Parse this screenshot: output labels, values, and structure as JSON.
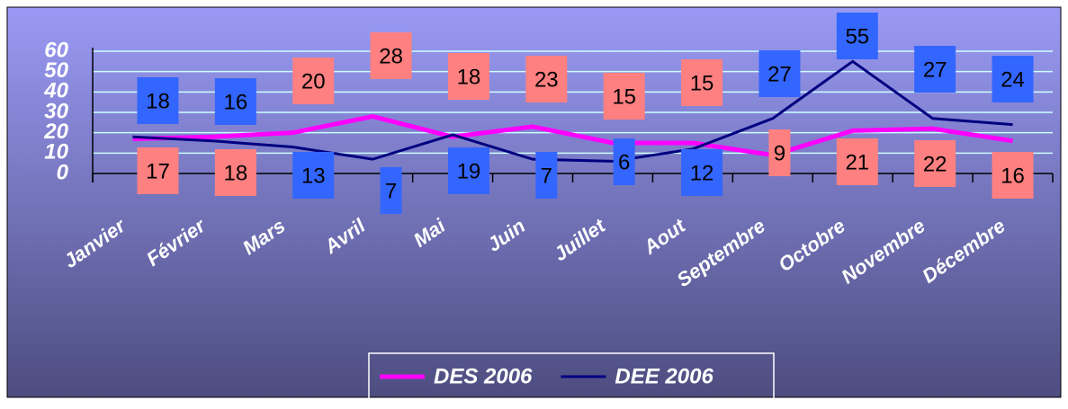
{
  "chart_data": {
    "type": "line",
    "categories": [
      "Janvier",
      "Février",
      "Mars",
      "Avril",
      "Mai",
      "Juin",
      "Juillet",
      "Aout",
      "Septembre",
      "Octobre",
      "Novembre",
      "Décembre"
    ],
    "series": [
      {
        "name": "DES 2006",
        "color": "#ff00ff",
        "label_color": "#ff8080",
        "values": [
          17,
          18,
          20,
          28,
          18,
          23,
          15,
          15,
          9,
          21,
          22,
          16
        ]
      },
      {
        "name": "DEE 2006",
        "color": "#000080",
        "label_color": "#3366ff",
        "values": [
          18,
          16,
          13,
          7,
          19,
          7,
          6,
          12,
          27,
          55,
          27,
          24
        ]
      }
    ],
    "ylim": [
      0,
      60
    ],
    "yticks": [
      0,
      10,
      20,
      30,
      40,
      50,
      60
    ],
    "grid": true,
    "legend": "bottom"
  }
}
